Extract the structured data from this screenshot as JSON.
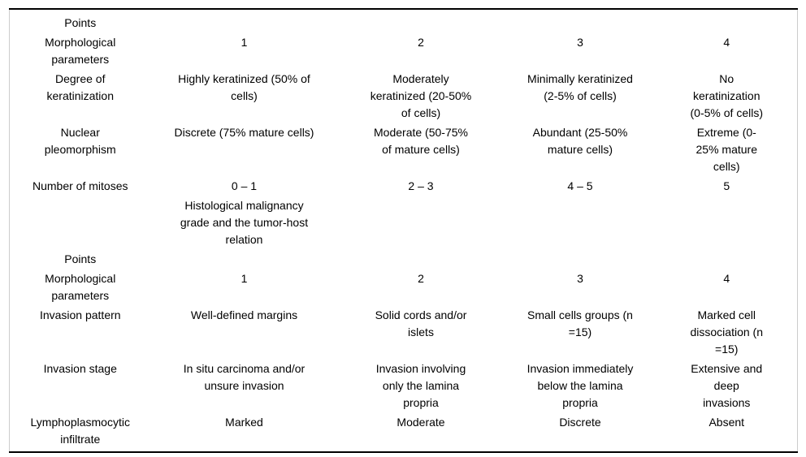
{
  "colors": {
    "background": "#ffffff",
    "text": "#000000",
    "horizontal_rule": "#000000",
    "side_border": "#cccccc"
  },
  "table": {
    "column_count": 5,
    "rows": [
      {
        "label": "Points",
        "values": [
          "",
          "",
          "",
          ""
        ]
      },
      {
        "label": "Morphological\nparameters",
        "values": [
          "1",
          "2",
          "3",
          "4"
        ]
      },
      {
        "label": "Degree of\nkeratinization",
        "values": [
          "Highly keratinized (50% of\ncells)",
          "Moderately\nkeratinized (20-50%\nof cells)",
          "Minimally keratinized\n(2-5% of cells)",
          "No\nkeratinization\n(0-5% of cells)"
        ]
      },
      {
        "label": "Nuclear\npleomorphism",
        "values": [
          "Discrete (75% mature cells)",
          "Moderate (50-75%\nof mature cells)",
          "Abundant (25-50%\nmature cells)",
          "Extreme (0-\n25% mature\ncells)"
        ]
      },
      {
        "label": "Number of mitoses",
        "values": [
          "0 – 1",
          "2 – 3",
          "4 – 5",
          "5"
        ]
      },
      {
        "label": "",
        "values": [
          "Histological malignancy\ngrade and the tumor-host\nrelation",
          "",
          "",
          ""
        ]
      },
      {
        "label": "Points",
        "values": [
          "",
          "",
          "",
          ""
        ]
      },
      {
        "label": "Morphological\nparameters",
        "values": [
          "1",
          "2",
          "3",
          "4"
        ]
      },
      {
        "label": "Invasion pattern",
        "values": [
          "Well-defined margins",
          "Solid cords and/or\nislets",
          "Small cells groups (n\n=15)",
          "Marked cell\ndissociation (n\n=15)"
        ]
      },
      {
        "label": "Invasion stage",
        "values": [
          "In situ carcinoma and/or\nunsure invasion",
          "Invasion involving\nonly the lamina\npropria",
          "Invasion immediately\nbelow the lamina\npropria",
          "Extensive and\ndeep\ninvasions"
        ]
      },
      {
        "label": "Lymphoplasmocytic\ninfiltrate",
        "values": [
          "Marked",
          "Moderate",
          "Discrete",
          "Absent"
        ]
      }
    ]
  }
}
